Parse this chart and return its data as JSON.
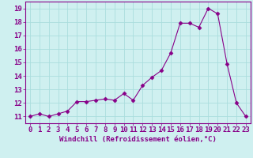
{
  "x": [
    0,
    1,
    2,
    3,
    4,
    5,
    6,
    7,
    8,
    9,
    10,
    11,
    12,
    13,
    14,
    15,
    16,
    17,
    18,
    19,
    20,
    21,
    22,
    23
  ],
  "y": [
    11.0,
    11.2,
    11.0,
    11.2,
    11.4,
    12.1,
    12.1,
    12.2,
    12.3,
    12.2,
    12.7,
    12.2,
    13.3,
    13.9,
    14.4,
    15.7,
    17.9,
    17.9,
    17.6,
    19.0,
    18.6,
    14.9,
    12.0,
    11.0
  ],
  "line_color": "#880088",
  "marker": "D",
  "marker_size": 2.5,
  "bg_color": "#cff0f0",
  "grid_color": "#aadddd",
  "xlabel": "Windchill (Refroidissement éolien,°C)",
  "ylabel": "",
  "xlim": [
    -0.5,
    23.5
  ],
  "ylim": [
    10.5,
    19.5
  ],
  "yticks": [
    11,
    12,
    13,
    14,
    15,
    16,
    17,
    18,
    19
  ],
  "xticks": [
    0,
    1,
    2,
    3,
    4,
    5,
    6,
    7,
    8,
    9,
    10,
    11,
    12,
    13,
    14,
    15,
    16,
    17,
    18,
    19,
    20,
    21,
    22,
    23
  ],
  "label_fontsize": 6.5,
  "tick_fontsize": 6.5
}
